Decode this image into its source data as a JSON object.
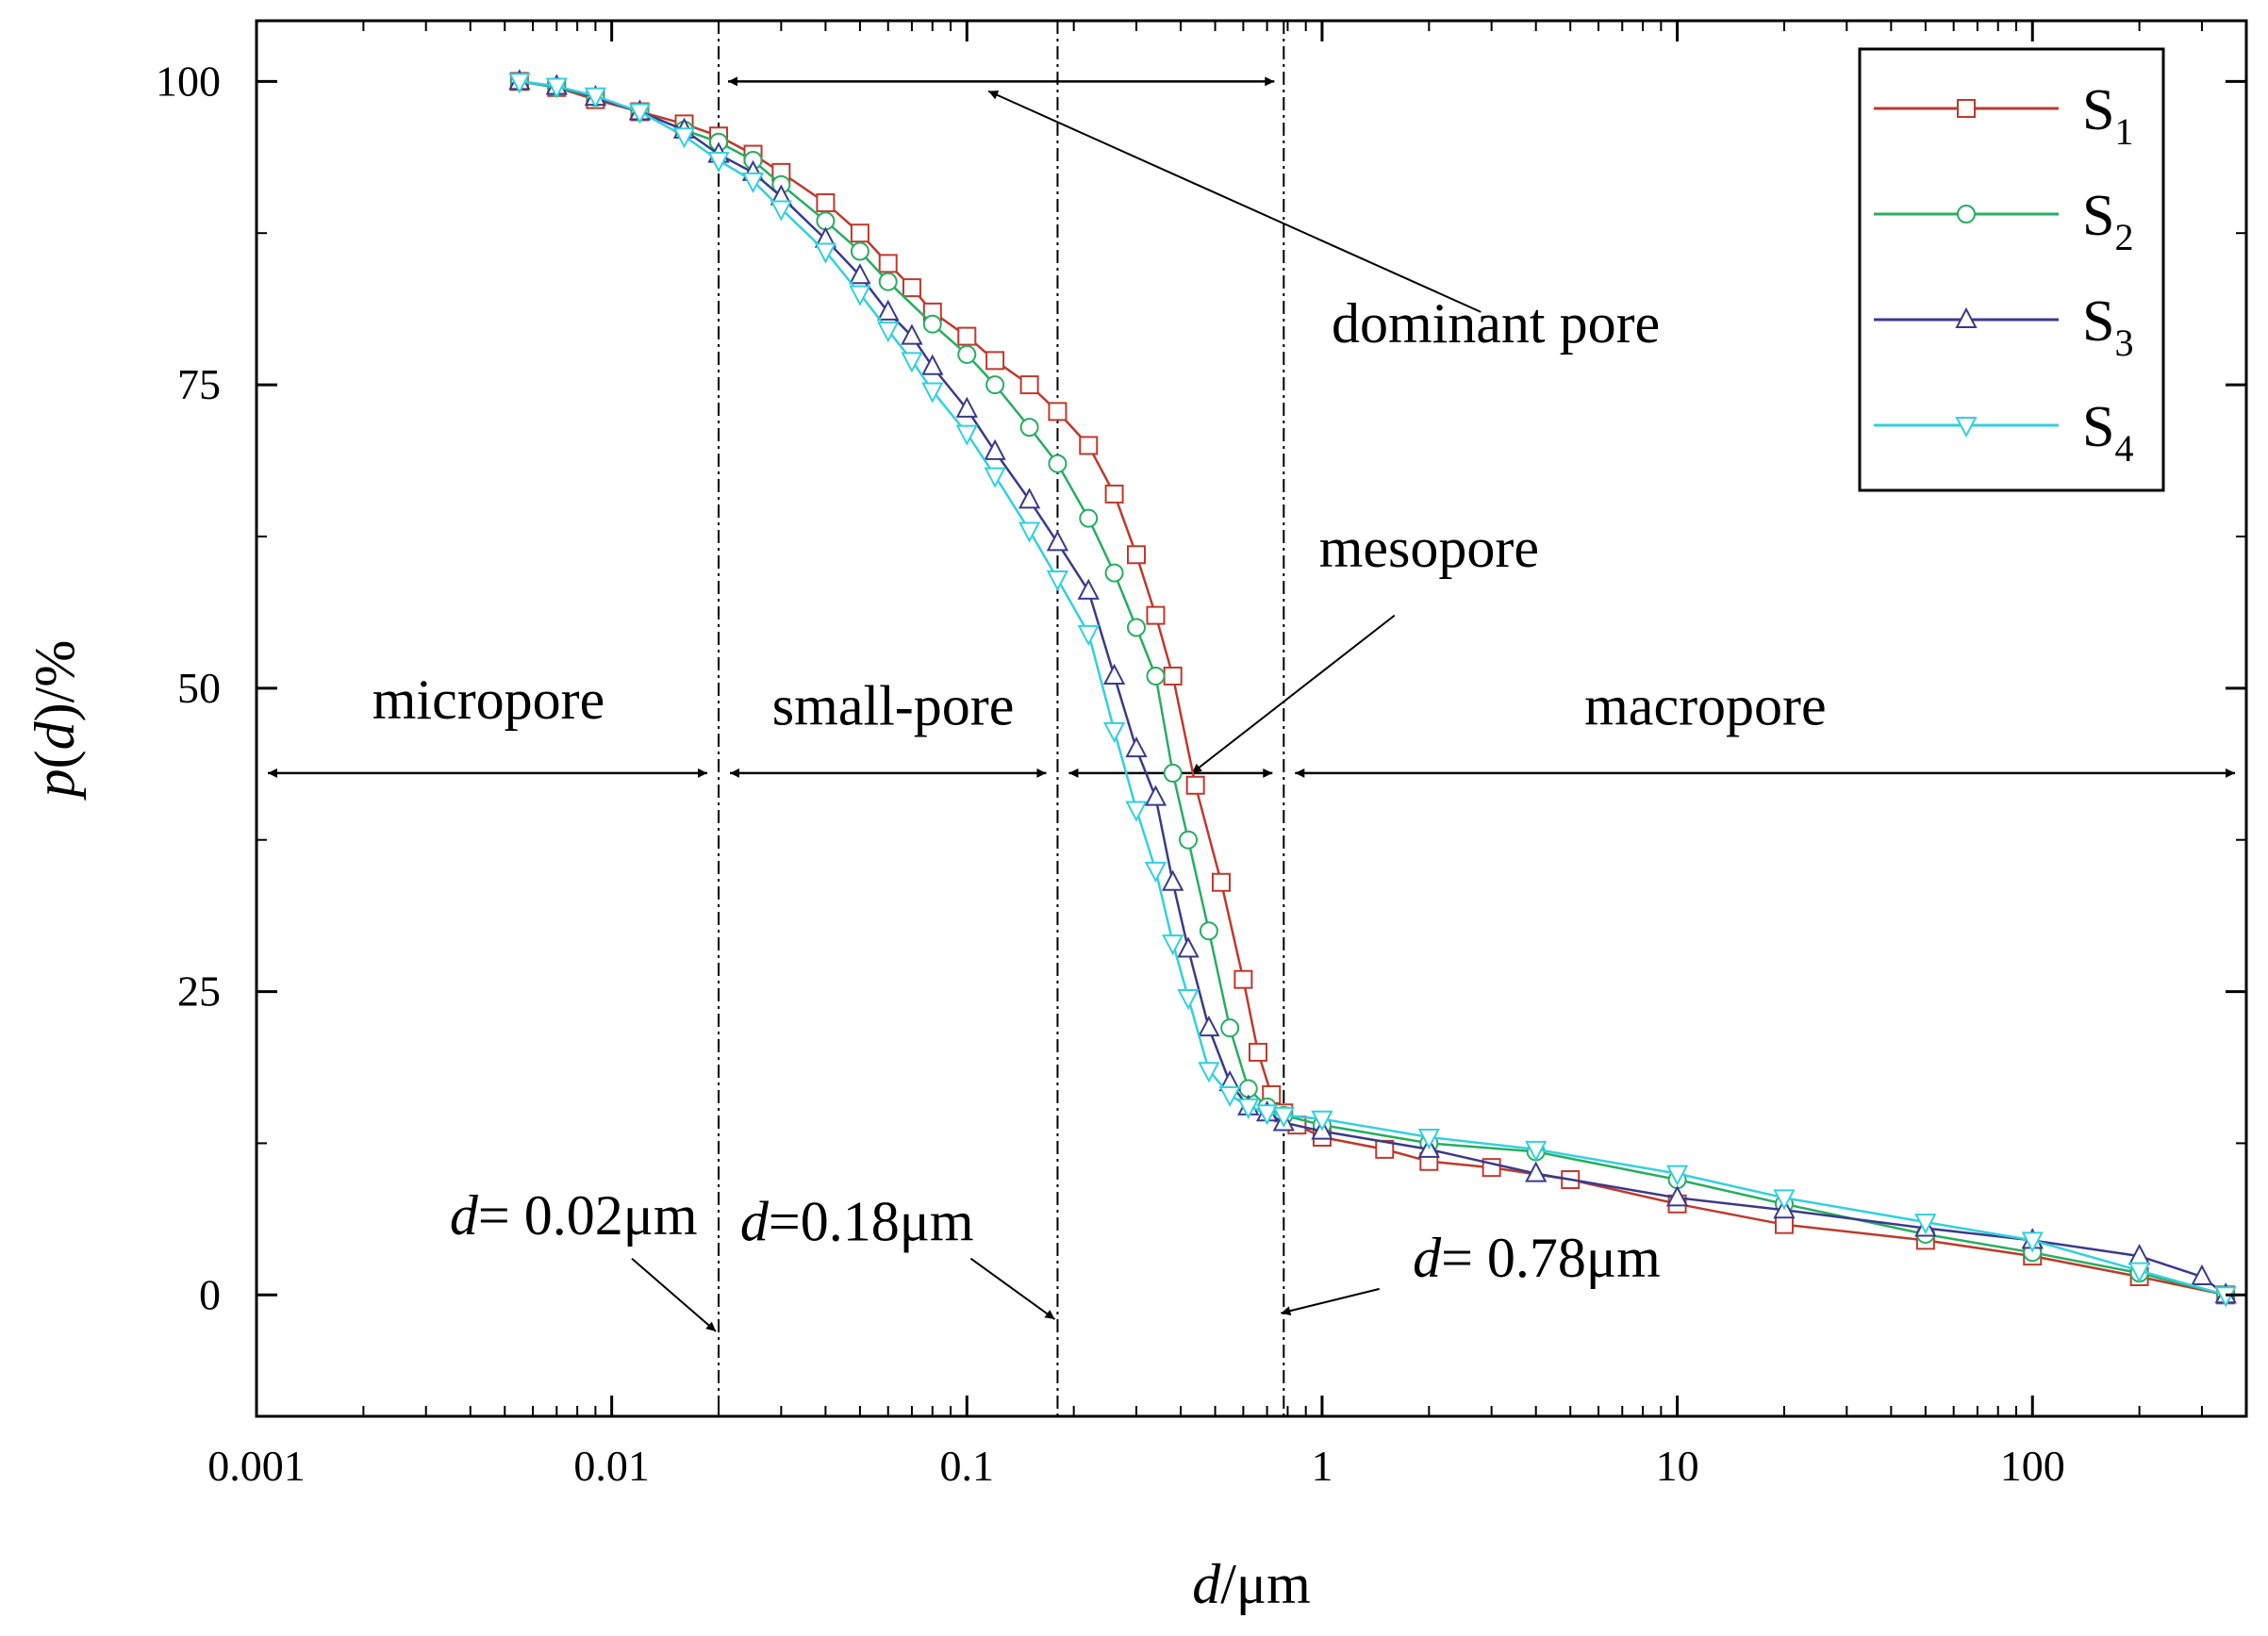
{
  "chart_data": {
    "type": "line",
    "title": "",
    "xlabel": {
      "var": "d",
      "unit": "/μm"
    },
    "ylabel": {
      "var": "p",
      "open": "(",
      "arg": "d",
      "close": ")",
      "unit": "/%"
    },
    "x_scale": "log",
    "xlim": [
      0.001,
      400
    ],
    "ylim": [
      -10,
      105
    ],
    "x_ticks": [
      0.001,
      0.01,
      0.1,
      1,
      10,
      100
    ],
    "x_tick_labels": [
      "0.001",
      "0.01",
      "0.1",
      "1",
      "10",
      "100"
    ],
    "y_ticks": [
      0,
      25,
      50,
      75,
      100
    ],
    "y_tick_labels": [
      "0",
      "25",
      "50",
      "75",
      "100"
    ],
    "legend_position": "top-right",
    "series": [
      {
        "name": "S1",
        "label_main": "S",
        "label_sub": "1",
        "color": "#c0392b",
        "marker": "square",
        "points": [
          [
            0.0055,
            100
          ],
          [
            0.007,
            99.5
          ],
          [
            0.009,
            98.5
          ],
          [
            0.012,
            97.5
          ],
          [
            0.016,
            96.5
          ],
          [
            0.02,
            95.5
          ],
          [
            0.025,
            94
          ],
          [
            0.03,
            92.5
          ],
          [
            0.04,
            90
          ],
          [
            0.05,
            87.5
          ],
          [
            0.06,
            85
          ],
          [
            0.07,
            83
          ],
          [
            0.08,
            81
          ],
          [
            0.1,
            79
          ],
          [
            0.12,
            77
          ],
          [
            0.15,
            75
          ],
          [
            0.18,
            72.8
          ],
          [
            0.22,
            70
          ],
          [
            0.26,
            66
          ],
          [
            0.3,
            61
          ],
          [
            0.34,
            56
          ],
          [
            0.38,
            51
          ],
          [
            0.44,
            42
          ],
          [
            0.52,
            34
          ],
          [
            0.6,
            26
          ],
          [
            0.66,
            20
          ],
          [
            0.72,
            16.5
          ],
          [
            0.78,
            15
          ],
          [
            0.85,
            14
          ],
          [
            1.0,
            13
          ],
          [
            1.5,
            12
          ],
          [
            2,
            11
          ],
          [
            3,
            10.5
          ],
          [
            5,
            9.5
          ],
          [
            10,
            7.5
          ],
          [
            20,
            5.8
          ],
          [
            50,
            4.5
          ],
          [
            100,
            3.2
          ],
          [
            200,
            1.5
          ],
          [
            350,
            0
          ]
        ]
      },
      {
        "name": "S2",
        "label_main": "S",
        "label_sub": "2",
        "color": "#27ae60",
        "marker": "circle",
        "points": [
          [
            0.0055,
            100
          ],
          [
            0.007,
            99.5
          ],
          [
            0.009,
            98.7
          ],
          [
            0.012,
            97.5
          ],
          [
            0.016,
            96
          ],
          [
            0.02,
            95
          ],
          [
            0.025,
            93.5
          ],
          [
            0.03,
            91.5
          ],
          [
            0.04,
            88.5
          ],
          [
            0.05,
            86
          ],
          [
            0.06,
            83.5
          ],
          [
            0.08,
            80
          ],
          [
            0.1,
            77.5
          ],
          [
            0.12,
            75
          ],
          [
            0.15,
            71.5
          ],
          [
            0.18,
            68.5
          ],
          [
            0.22,
            64
          ],
          [
            0.26,
            59.5
          ],
          [
            0.3,
            55
          ],
          [
            0.34,
            51
          ],
          [
            0.38,
            43
          ],
          [
            0.42,
            37.5
          ],
          [
            0.48,
            30
          ],
          [
            0.55,
            22
          ],
          [
            0.62,
            17
          ],
          [
            0.7,
            15.5
          ],
          [
            0.78,
            14.8
          ],
          [
            1.0,
            14
          ],
          [
            2,
            12.5
          ],
          [
            4,
            11.8
          ],
          [
            10,
            9.5
          ],
          [
            20,
            7.5
          ],
          [
            50,
            5
          ],
          [
            100,
            3.5
          ],
          [
            200,
            1.8
          ],
          [
            350,
            0
          ]
        ]
      },
      {
        "name": "S3",
        "label_main": "S",
        "label_sub": "3",
        "color": "#3a3a8c",
        "marker": "triangle",
        "points": [
          [
            0.0055,
            100
          ],
          [
            0.007,
            99.6
          ],
          [
            0.009,
            98.7
          ],
          [
            0.012,
            97.5
          ],
          [
            0.016,
            96
          ],
          [
            0.02,
            94
          ],
          [
            0.025,
            92.5
          ],
          [
            0.03,
            90.5
          ],
          [
            0.04,
            87
          ],
          [
            0.05,
            84
          ],
          [
            0.06,
            81
          ],
          [
            0.07,
            79
          ],
          [
            0.08,
            76.5
          ],
          [
            0.1,
            73
          ],
          [
            0.12,
            69.5
          ],
          [
            0.15,
            65.5
          ],
          [
            0.18,
            62
          ],
          [
            0.22,
            58
          ],
          [
            0.26,
            51
          ],
          [
            0.3,
            45
          ],
          [
            0.34,
            41
          ],
          [
            0.38,
            34
          ],
          [
            0.42,
            28.5
          ],
          [
            0.48,
            22
          ],
          [
            0.55,
            17.5
          ],
          [
            0.62,
            15.5
          ],
          [
            0.7,
            15
          ],
          [
            0.78,
            14.2
          ],
          [
            1.0,
            13.5
          ],
          [
            2,
            12
          ],
          [
            4,
            10
          ],
          [
            10,
            8
          ],
          [
            20,
            7
          ],
          [
            50,
            5.5
          ],
          [
            100,
            4.5
          ],
          [
            200,
            3.2
          ],
          [
            300,
            1.5
          ],
          [
            350,
            0
          ]
        ]
      },
      {
        "name": "S4",
        "label_main": "S",
        "label_sub": "4",
        "color": "#33d0e0",
        "marker": "triangle-down",
        "points": [
          [
            0.0055,
            100
          ],
          [
            0.007,
            99.6
          ],
          [
            0.009,
            98.8
          ],
          [
            0.012,
            97.5
          ],
          [
            0.016,
            95.5
          ],
          [
            0.02,
            93.5
          ],
          [
            0.025,
            91.8
          ],
          [
            0.03,
            89.5
          ],
          [
            0.04,
            86
          ],
          [
            0.05,
            82.5
          ],
          [
            0.06,
            79.5
          ],
          [
            0.07,
            77
          ],
          [
            0.08,
            74.5
          ],
          [
            0.1,
            71
          ],
          [
            0.12,
            67.5
          ],
          [
            0.15,
            63
          ],
          [
            0.18,
            59
          ],
          [
            0.22,
            54.5
          ],
          [
            0.26,
            46.5
          ],
          [
            0.3,
            40
          ],
          [
            0.34,
            35
          ],
          [
            0.38,
            29
          ],
          [
            0.42,
            24.5
          ],
          [
            0.48,
            18.5
          ],
          [
            0.55,
            16.5
          ],
          [
            0.62,
            15.5
          ],
          [
            0.7,
            15
          ],
          [
            0.78,
            14.8
          ],
          [
            1.0,
            14.5
          ],
          [
            2,
            13
          ],
          [
            4,
            12
          ],
          [
            10,
            10
          ],
          [
            20,
            8
          ],
          [
            50,
            6
          ],
          [
            100,
            4.5
          ],
          [
            200,
            2
          ],
          [
            350,
            0
          ]
        ]
      }
    ],
    "boundaries": [
      0.02,
      0.18,
      0.78
    ],
    "regions": [
      {
        "label": "micropore",
        "from": 0.001,
        "to": 0.02,
        "label_x": 0.0045,
        "label_y": 47.5
      },
      {
        "label": "small-pore",
        "from": 0.02,
        "to": 0.18,
        "label_x": 0.062,
        "label_y": 47
      },
      {
        "label": "mesopore",
        "from": 0.18,
        "to": 0.78,
        "label_x": 2.0,
        "label_y": 60
      },
      {
        "label": "macropore",
        "from": 0.78,
        "to": 400,
        "label_x": 12,
        "label_y": 47
      }
    ],
    "region_arrow_y": 43,
    "dominant_pore": {
      "label": "dominant pore",
      "from": 0.02,
      "to": 0.78,
      "arrow_y": 100,
      "label_x": 1.0,
      "label_y": 78.5
    },
    "boundary_labels": [
      {
        "var": "d",
        "text": "= 0.02μm",
        "value": 0.02,
        "label_x": 0.0035,
        "label_y": 5,
        "tip_y": -3
      },
      {
        "var": "d",
        "text": "=0.18μm",
        "value": 0.18,
        "label_x": 0.023,
        "label_y": 4.5,
        "tip_y": -2
      },
      {
        "var": "d",
        "text": "= 0.78μm",
        "value": 0.78,
        "label_x": 1.8,
        "label_y": 1.5,
        "tip_y": -1.5
      }
    ]
  }
}
